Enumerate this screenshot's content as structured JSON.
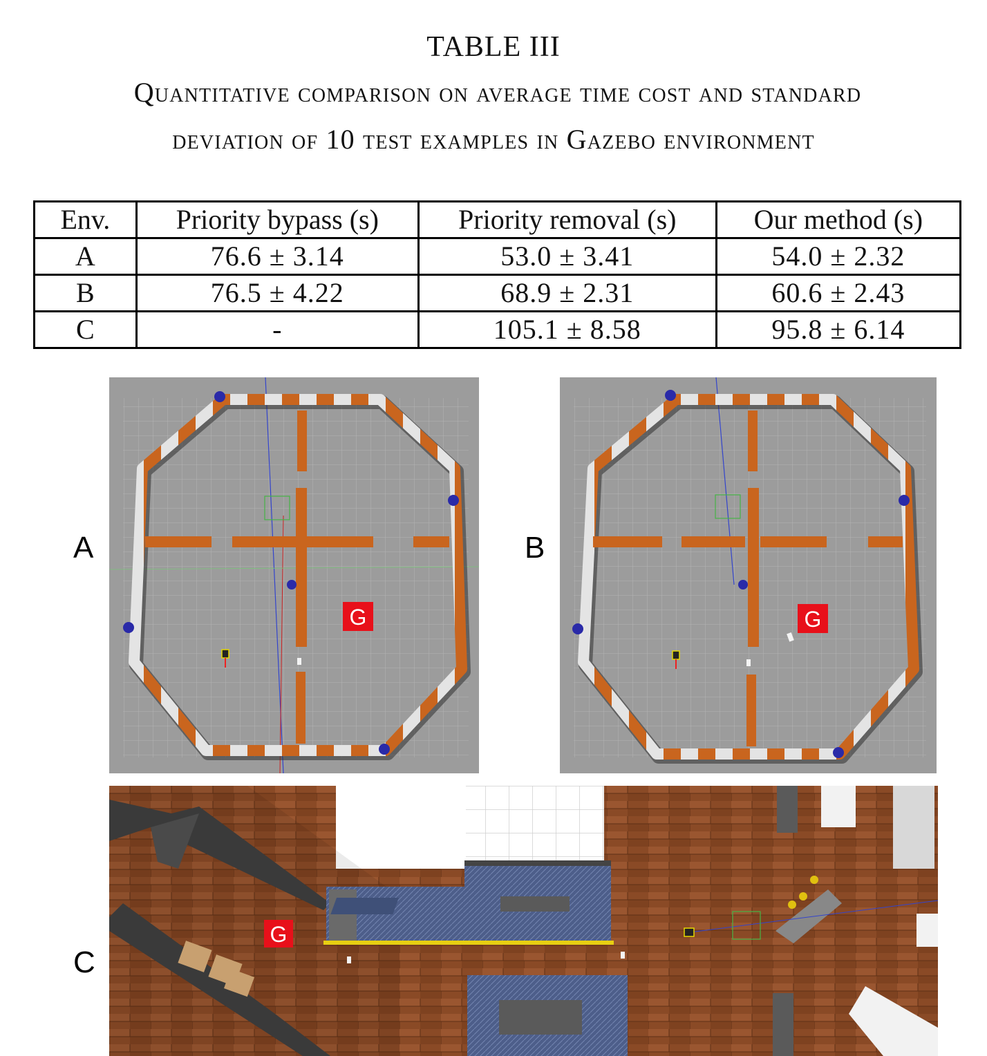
{
  "caption": {
    "table_no": "TABLE III",
    "line1": "Quantitative comparison on average time cost and standard",
    "line2": "deviation of 10 test examples in Gazebo environment"
  },
  "table": {
    "headers": [
      "Env.",
      "Priority bypass (s)",
      "Priority removal (s)",
      "Our method (s)"
    ],
    "rows": [
      [
        "A",
        "76.6 ± 3.14",
        "53.0 ± 3.41",
        "54.0 ± 2.32"
      ],
      [
        "B",
        "76.5 ± 4.22",
        "68.9 ± 2.31",
        "60.6 ± 2.43"
      ],
      [
        "C",
        "-",
        "105.1 ± 8.58",
        "95.8 ± 6.14"
      ]
    ]
  },
  "figures": {
    "label_a": "A",
    "label_b": "B",
    "label_c": "C",
    "goal_a": "G",
    "goal_b": "G",
    "goal_c": "G"
  },
  "colors": {
    "floor_grey": "#9b9b9b",
    "wall_orange": "#c9651e",
    "wall_white": "#e6e6e6",
    "goal_red": "#e8101a",
    "wood": "#8a4a26",
    "carpet": "#4d5e8a"
  }
}
